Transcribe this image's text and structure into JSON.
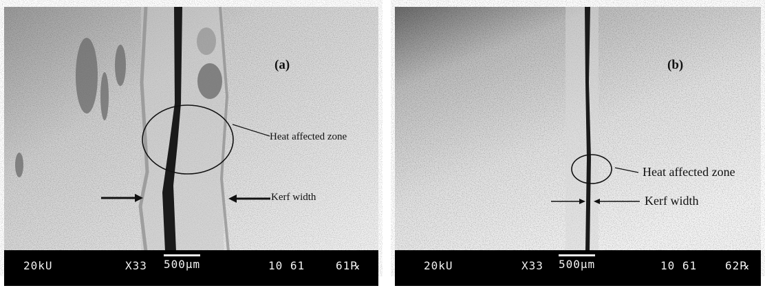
{
  "figure": {
    "panel_a": {
      "label": "(a)",
      "annotations": {
        "haz": "Heat affected zone",
        "kerf": "Kerf width"
      },
      "databar": {
        "voltage": "20kU",
        "magnification": "X33",
        "scale": "500µm",
        "code": "10 61",
        "image_id": "61℞"
      }
    },
    "panel_b": {
      "label": "(b)",
      "annotations": {
        "haz": "Heat affected zone",
        "kerf": "Kerf width"
      },
      "databar": {
        "voltage": "20kU",
        "magnification": "X33",
        "scale": "500µm",
        "code": "10 61",
        "image_id": "62℞"
      }
    }
  },
  "colors": {
    "background": "#ffffff",
    "databar": "#000000",
    "cut": "#1a1a1a",
    "surface": "#dedede"
  }
}
